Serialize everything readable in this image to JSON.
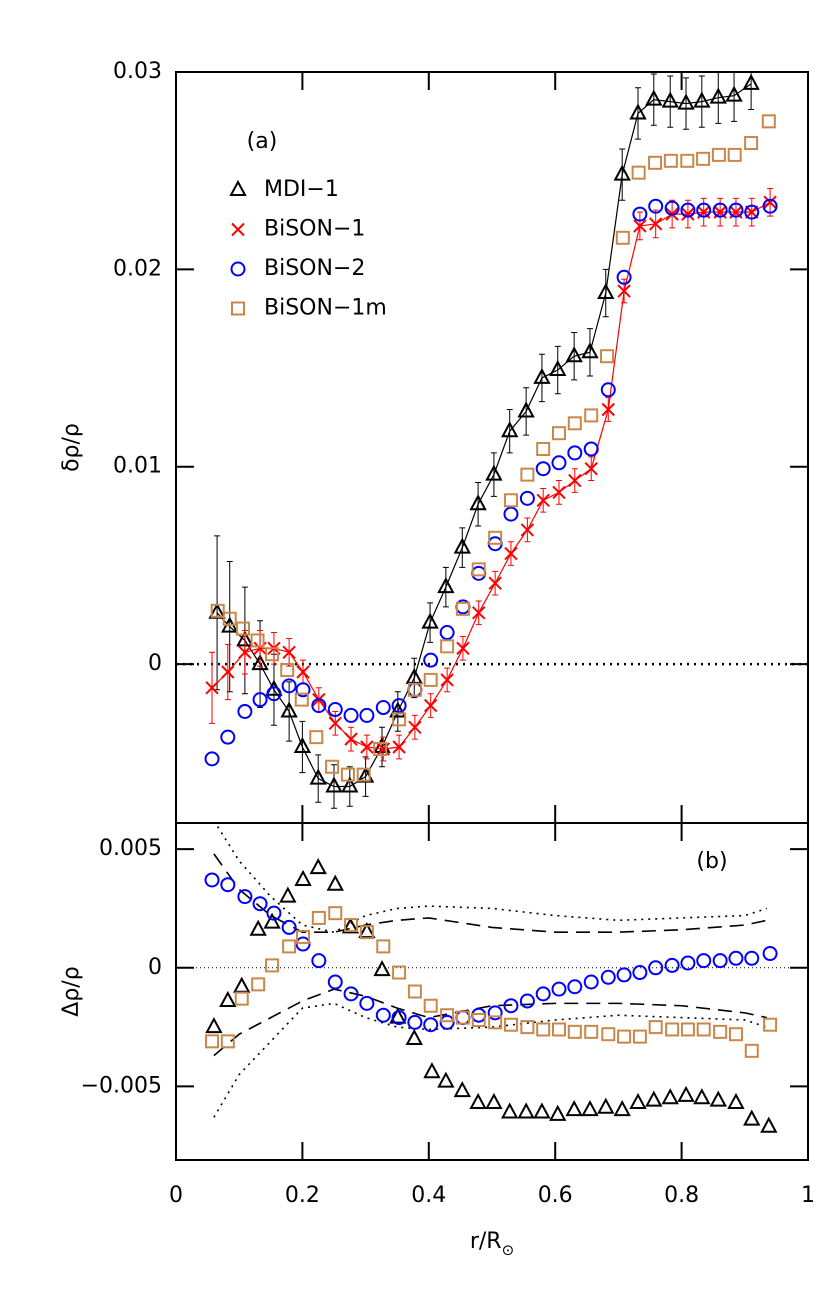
{
  "chart_data": [
    {
      "type": "scatter",
      "annotation": "(a)",
      "y_label": "δρ/ρ",
      "xlim": [
        0,
        1
      ],
      "ylim": [
        -0.00805,
        0.03
      ],
      "yticks": [
        0,
        0.01,
        0.02,
        0.03
      ],
      "hline": 0,
      "series": [
        {
          "name": "MDI−1",
          "color": "#000000",
          "marker": "triangle",
          "line": true,
          "x": [
            0.065,
            0.085,
            0.109,
            0.133,
            0.155,
            0.179,
            0.2,
            0.225,
            0.25,
            0.275,
            0.3,
            0.326,
            0.351,
            0.377,
            0.402,
            0.427,
            0.453,
            0.478,
            0.503,
            0.528,
            0.554,
            0.579,
            0.604,
            0.63,
            0.655,
            0.68,
            0.706,
            0.731,
            0.756,
            0.782,
            0.807,
            0.832,
            0.858,
            0.883,
            0.91
          ],
          "values": [
            0.0026,
            0.0019,
            0.0012,
            0.0,
            -0.0013,
            -0.0024,
            -0.0042,
            -0.0058,
            -0.0062,
            -0.0062,
            -0.0057,
            -0.0042,
            -0.0024,
            -0.0007,
            0.0021,
            0.0039,
            0.0059,
            0.0081,
            0.0096,
            0.0118,
            0.0128,
            0.0145,
            0.0149,
            0.0156,
            0.0158,
            0.0188,
            0.0248,
            0.0279,
            0.0286,
            0.0285,
            0.0284,
            0.0285,
            0.0287,
            0.0288,
            0.0294
          ],
          "errors": [
            0.0039,
            0.0033,
            0.0027,
            0.0022,
            0.0018,
            0.0015,
            0.0013,
            0.0012,
            0.0011,
            0.001,
            0.001,
            0.001,
            0.001,
            0.001,
            0.001,
            0.001,
            0.001,
            0.0011,
            0.0011,
            0.0011,
            0.0012,
            0.0012,
            0.0012,
            0.0012,
            0.0012,
            0.0012,
            0.0013,
            0.0013,
            0.0013,
            0.0013,
            0.0013,
            0.0013,
            0.0013,
            0.0013,
            0.0013
          ]
        },
        {
          "name": "BiSON−1",
          "color": "#ff0000",
          "marker": "cross",
          "line": true,
          "x": [
            0.057,
            0.082,
            0.109,
            0.133,
            0.155,
            0.179,
            0.201,
            0.226,
            0.252,
            0.277,
            0.302,
            0.328,
            0.353,
            0.378,
            0.403,
            0.429,
            0.454,
            0.479,
            0.505,
            0.53,
            0.556,
            0.581,
            0.606,
            0.631,
            0.657,
            0.684,
            0.709,
            0.734,
            0.759,
            0.785,
            0.81,
            0.835,
            0.861,
            0.886,
            0.911,
            0.94
          ],
          "values": [
            -0.0012,
            -0.0004,
            0.0006,
            0.0008,
            0.0008,
            0.0006,
            -0.0004,
            -0.0018,
            -0.003,
            -0.0038,
            -0.0042,
            -0.0043,
            -0.0042,
            -0.0032,
            -0.0021,
            -0.0008,
            0.0008,
            0.0026,
            0.0041,
            0.0056,
            0.0068,
            0.0083,
            0.0087,
            0.0093,
            0.0099,
            0.0129,
            0.0189,
            0.0222,
            0.0223,
            0.0228,
            0.0228,
            0.0229,
            0.0229,
            0.0229,
            0.0229,
            0.0234
          ],
          "errors": [
            0.0018,
            0.0014,
            0.0011,
            0.0009,
            0.0008,
            0.0007,
            0.0006,
            0.0006,
            0.0006,
            0.0006,
            0.0006,
            0.0006,
            0.0006,
            0.0006,
            0.0006,
            0.0006,
            0.0006,
            0.0006,
            0.0006,
            0.0006,
            0.0006,
            0.0006,
            0.0006,
            0.0006,
            0.0006,
            0.0006,
            0.0006,
            0.0007,
            0.0007,
            0.0007,
            0.0007,
            0.0007,
            0.0007,
            0.0007,
            0.0007,
            0.0007
          ]
        },
        {
          "name": "BiSON−2",
          "color": "#0000ff",
          "marker": "circle",
          "line": false,
          "x": [
            0.057,
            0.082,
            0.109,
            0.133,
            0.155,
            0.179,
            0.201,
            0.226,
            0.252,
            0.277,
            0.302,
            0.328,
            0.353,
            0.378,
            0.403,
            0.429,
            0.454,
            0.479,
            0.505,
            0.53,
            0.556,
            0.581,
            0.606,
            0.631,
            0.657,
            0.684,
            0.709,
            0.734,
            0.759,
            0.785,
            0.81,
            0.835,
            0.861,
            0.886,
            0.911,
            0.94
          ],
          "values": [
            -0.0048,
            -0.0037,
            -0.0024,
            -0.0018,
            -0.0015,
            -0.0011,
            -0.0013,
            -0.0021,
            -0.0023,
            -0.0026,
            -0.0026,
            -0.0022,
            -0.0021,
            -0.0013,
            0.0002,
            0.0016,
            0.0029,
            0.0046,
            0.0061,
            0.0076,
            0.0084,
            0.0099,
            0.0102,
            0.0107,
            0.0109,
            0.0139,
            0.0196,
            0.0228,
            0.0232,
            0.0231,
            0.023,
            0.023,
            0.023,
            0.023,
            0.0229,
            0.0232
          ]
        },
        {
          "name": "BiSON−1m",
          "color": "#c8874b",
          "marker": "square",
          "line": false,
          "x": [
            0.066,
            0.085,
            0.106,
            0.129,
            0.152,
            0.176,
            0.199,
            0.222,
            0.247,
            0.272,
            0.297,
            0.323,
            0.353,
            0.378,
            0.403,
            0.429,
            0.454,
            0.479,
            0.505,
            0.53,
            0.556,
            0.581,
            0.606,
            0.631,
            0.657,
            0.682,
            0.707,
            0.732,
            0.758,
            0.783,
            0.809,
            0.834,
            0.859,
            0.884,
            0.91,
            0.938
          ],
          "values": [
            0.0027,
            0.0023,
            0.0018,
            0.0012,
            0.0005,
            -0.0003,
            -0.0018,
            -0.0037,
            -0.0052,
            -0.0056,
            -0.0056,
            -0.0043,
            -0.0028,
            -0.0013,
            -0.0008,
            0.0009,
            0.0028,
            0.0048,
            0.0064,
            0.0083,
            0.0096,
            0.0109,
            0.0117,
            0.0122,
            0.0126,
            0.0156,
            0.0216,
            0.0249,
            0.0254,
            0.0255,
            0.0255,
            0.0256,
            0.0258,
            0.0258,
            0.0264,
            0.0275
          ]
        }
      ]
    },
    {
      "type": "scatter",
      "annotation": "(b)",
      "y_label": "Δρ/ρ",
      "x_label": "r/R",
      "x_label_sub": "⊙",
      "xlim": [
        0,
        1
      ],
      "ylim": [
        -0.0081,
        0.0061
      ],
      "xticks": [
        0,
        0.2,
        0.4,
        0.6,
        0.8,
        1
      ],
      "yticks": [
        {
          "value": -0.005,
          "label": "−0.005"
        },
        0,
        0.005
      ],
      "hline": 0,
      "series": [
        {
          "color": "#000000",
          "dash": "dashed",
          "line": true,
          "x": [
            0.06,
            0.1,
            0.15,
            0.2,
            0.25,
            0.3,
            0.35,
            0.4,
            0.5,
            0.6,
            0.7,
            0.8,
            0.9,
            0.935
          ],
          "values": [
            0.0048,
            0.0033,
            0.0022,
            0.0015,
            0.0015,
            0.0018,
            0.002,
            0.0021,
            0.0017,
            0.0015,
            0.0015,
            0.0016,
            0.0018,
            0.002
          ]
        },
        {
          "color": "#000000",
          "dash": "dashed",
          "line": true,
          "x": [
            0.06,
            0.1,
            0.15,
            0.2,
            0.25,
            0.3,
            0.35,
            0.4,
            0.5,
            0.6,
            0.7,
            0.8,
            0.9,
            0.935
          ],
          "values": [
            -0.0037,
            -0.0028,
            -0.0021,
            -0.0014,
            -0.0009,
            -0.0012,
            -0.0017,
            -0.0021,
            -0.0016,
            -0.0015,
            -0.0015,
            -0.0016,
            -0.0019,
            -0.0021
          ]
        },
        {
          "color": "#000000",
          "dash": "dotted",
          "line": true,
          "x": [
            0.06,
            0.1,
            0.15,
            0.2,
            0.25,
            0.3,
            0.35,
            0.4,
            0.5,
            0.6,
            0.7,
            0.8,
            0.9,
            0.935
          ],
          "values": [
            0.0062,
            0.0045,
            0.003,
            0.0018,
            0.0015,
            0.0022,
            0.0025,
            0.0026,
            0.0025,
            0.0022,
            0.002,
            0.0021,
            0.0022,
            0.0025
          ]
        },
        {
          "color": "#000000",
          "dash": "dotted",
          "line": true,
          "x": [
            0.06,
            0.1,
            0.15,
            0.2,
            0.25,
            0.3,
            0.35,
            0.4,
            0.5,
            0.6,
            0.7,
            0.8,
            0.9,
            0.935
          ],
          "values": [
            -0.0063,
            -0.0045,
            -0.0031,
            -0.0017,
            -0.0015,
            -0.0021,
            -0.0025,
            -0.0026,
            -0.0025,
            -0.0022,
            -0.002,
            -0.0021,
            -0.0022,
            -0.0025
          ]
        },
        {
          "color": "#000000",
          "marker": "triangle",
          "line": false,
          "x": [
            0.06,
            0.082,
            0.104,
            0.13,
            0.152,
            0.177,
            0.201,
            0.225,
            0.252,
            0.276,
            0.302,
            0.326,
            0.351,
            0.377,
            0.405,
            0.427,
            0.453,
            0.478,
            0.503,
            0.528,
            0.554,
            0.579,
            0.604,
            0.63,
            0.655,
            0.68,
            0.706,
            0.731,
            0.756,
            0.782,
            0.807,
            0.832,
            0.858,
            0.886,
            0.911,
            0.938
          ],
          "values": [
            -0.0025,
            -0.0014,
            -0.0008,
            0.0016,
            0.0019,
            0.003,
            0.0037,
            0.0042,
            0.0035,
            0.0017,
            0.0015,
            -0.0001,
            -0.0021,
            -0.003,
            -0.0044,
            -0.0048,
            -0.0052,
            -0.0057,
            -0.0057,
            -0.0061,
            -0.0061,
            -0.0061,
            -0.0062,
            -0.006,
            -0.006,
            -0.0059,
            -0.006,
            -0.0057,
            -0.0056,
            -0.0055,
            -0.0054,
            -0.0055,
            -0.0056,
            -0.0057,
            -0.0064,
            -0.0067
          ]
        },
        {
          "color": "#0000ff",
          "marker": "circle",
          "line": false,
          "x": [
            0.057,
            0.082,
            0.109,
            0.133,
            0.155,
            0.179,
            0.201,
            0.226,
            0.252,
            0.277,
            0.302,
            0.328,
            0.353,
            0.378,
            0.403,
            0.429,
            0.454,
            0.479,
            0.505,
            0.53,
            0.556,
            0.581,
            0.606,
            0.631,
            0.657,
            0.684,
            0.709,
            0.734,
            0.759,
            0.785,
            0.81,
            0.835,
            0.861,
            0.886,
            0.911,
            0.94
          ],
          "values": [
            0.0037,
            0.0035,
            0.003,
            0.0027,
            0.0023,
            0.0017,
            0.001,
            0.0003,
            -0.0006,
            -0.0011,
            -0.0015,
            -0.002,
            -0.0021,
            -0.0023,
            -0.0024,
            -0.0023,
            -0.0021,
            -0.002,
            -0.0019,
            -0.0016,
            -0.0014,
            -0.0011,
            -0.0009,
            -0.0008,
            -0.0006,
            -0.0004,
            -0.0003,
            -0.0002,
            0,
            0.0001,
            0.0002,
            0.0003,
            0.0003,
            0.0004,
            0.0004,
            0.0006
          ]
        },
        {
          "color": "#c8874b",
          "marker": "square",
          "line": false,
          "x": [
            0.057,
            0.082,
            0.104,
            0.13,
            0.152,
            0.179,
            0.201,
            0.226,
            0.252,
            0.277,
            0.302,
            0.328,
            0.353,
            0.378,
            0.403,
            0.429,
            0.454,
            0.479,
            0.505,
            0.53,
            0.556,
            0.581,
            0.606,
            0.631,
            0.657,
            0.684,
            0.709,
            0.734,
            0.759,
            0.785,
            0.81,
            0.835,
            0.861,
            0.886,
            0.911,
            0.94
          ],
          "values": [
            -0.0031,
            -0.0031,
            -0.0013,
            -0.0007,
            0.0001,
            0.0009,
            0.0013,
            0.0021,
            0.0023,
            0.0018,
            0.0015,
            0.0009,
            -0.0002,
            -0.001,
            -0.0016,
            -0.002,
            -0.0021,
            -0.0022,
            -0.0023,
            -0.0024,
            -0.0025,
            -0.0026,
            -0.0026,
            -0.0027,
            -0.0027,
            -0.0028,
            -0.0029,
            -0.0029,
            -0.0025,
            -0.0026,
            -0.0026,
            -0.0026,
            -0.0027,
            -0.0028,
            -0.0035,
            -0.0024
          ]
        }
      ]
    }
  ]
}
